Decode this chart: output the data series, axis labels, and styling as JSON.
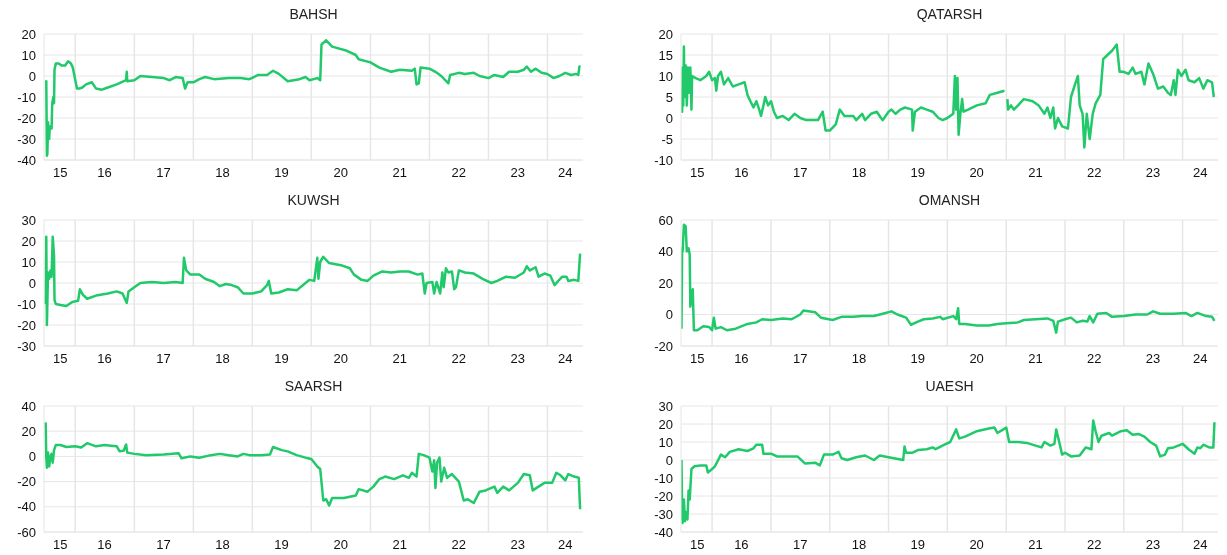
{
  "chart_data": [
    {
      "type": "line",
      "title": "BAHSH",
      "x": [
        "2015-07-06",
        "2015-07-10",
        "2015-07-13",
        "2015-07-17",
        "2015-07-24",
        "2015-07-28",
        "2015-08-08",
        "2015-08-12",
        "2015-08-19",
        "2015-08-23",
        "2015-08-26",
        "2015-09-03",
        "2015-09-21",
        "2015-10-09",
        "2015-10-31",
        "2015-11-18",
        "2015-12-06",
        "2015-12-17",
        "2016-01-12",
        "2016-01-27",
        "2016-02-14",
        "2016-03-08",
        "2016-04-13",
        "2016-05-09",
        "2016-06-14",
        "2016-07-21",
        "2016-09-14",
        "2016-11-11",
        "2016-11-15",
        "2016-11-18",
        "2017-01-01",
        "2017-02-07",
        "2017-04-20",
        "2017-07-02",
        "2017-08-08",
        "2017-09-14",
        "2017-10-27",
        "2017-11-11",
        "2017-11-26",
        "2018-01-01",
        "2018-02-07",
        "2018-03-15",
        "2018-05-09",
        "2018-08-08",
        "2018-10-20",
        "2018-12-14",
        "2019-02-07",
        "2019-04-02",
        "2019-05-09",
        "2019-06-14",
        "2019-08-08",
        "2019-10-20",
        "2019-11-26",
        "2019-12-21",
        "2020-02-07",
        "2020-02-25",
        "2020-03-04",
        "2020-04-02",
        "2020-05-09",
        "2020-08-08",
        "2020-10-02",
        "2020-10-20",
        "2021-01-01",
        "2021-02-25",
        "2021-05-09",
        "2021-07-02",
        "2021-09-14",
        "2021-10-02",
        "2021-10-13",
        "2021-10-27",
        "2021-11-07",
        "2022-01-01",
        "2022-02-07",
        "2022-03-15",
        "2022-04-28",
        "2022-05-09",
        "2022-07-02",
        "2022-08-08",
        "2022-10-02",
        "2022-11-07",
        "2023-01-01",
        "2023-02-07",
        "2023-04-02",
        "2023-05-09",
        "2023-07-02",
        "2023-08-08",
        "2023-08-26",
        "2023-09-21",
        "2023-10-20",
        "2023-11-26",
        "2024-01-01",
        "2024-02-07",
        "2024-03-15",
        "2024-04-20",
        "2024-05-27",
        "2024-06-25",
        "2024-07-10",
        "2024-07-17",
        "2024-07-24"
      ],
      "series": [
        {
          "color": "#21c96b",
          "values": [
            -2,
            -38,
            -37,
            -22,
            -30,
            -24,
            -25,
            -13,
            -10,
            -13,
            3,
            6,
            6,
            5,
            5,
            7,
            6,
            4,
            -6,
            -6,
            -5.5,
            -4,
            -3,
            -6,
            -6.5,
            -5.5,
            -4,
            -2,
            2,
            -2.5,
            -2,
            0,
            -0.5,
            -1,
            -2,
            -0.5,
            -1,
            -6,
            -3,
            -3,
            -1.5,
            -0.5,
            -1.5,
            -1,
            -1,
            -1.5,
            0.5,
            0.5,
            2.5,
            1,
            -2.5,
            -1.5,
            -0.5,
            -2,
            -1,
            -2,
            15,
            17,
            14,
            12,
            10,
            8,
            6.5,
            4,
            2,
            3,
            2.5,
            3.5,
            -4,
            -3.5,
            4,
            3.5,
            2,
            0,
            -3.5,
            0.5,
            1.5,
            1,
            1.5,
            0,
            -1,
            0.5,
            -0.5,
            2,
            2,
            3,
            4.5,
            2,
            3.5,
            1.5,
            1,
            -1,
            0,
            1.5,
            0.5,
            1,
            0.5,
            4.5,
            4.5
          ]
        }
      ],
      "xlim": [
        "2015-06-22",
        "2024-08-08"
      ],
      "xticks": [
        {
          "value": "2015-10-01",
          "label": "15"
        },
        {
          "value": "2016-01-01",
          "label": null
        },
        {
          "value": "2016-07-01",
          "label": "16"
        },
        {
          "value": "2017-01-01",
          "label": null
        },
        {
          "value": "2017-07-01",
          "label": "17"
        },
        {
          "value": "2018-01-01",
          "label": null
        },
        {
          "value": "2018-07-01",
          "label": "18"
        },
        {
          "value": "2019-01-01",
          "label": null
        },
        {
          "value": "2019-07-01",
          "label": "19"
        },
        {
          "value": "2020-01-01",
          "label": null
        },
        {
          "value": "2020-07-01",
          "label": "20"
        },
        {
          "value": "2021-01-01",
          "label": null
        },
        {
          "value": "2021-07-01",
          "label": "21"
        },
        {
          "value": "2022-01-01",
          "label": null
        },
        {
          "value": "2022-07-01",
          "label": "22"
        },
        {
          "value": "2023-01-01",
          "label": null
        },
        {
          "value": "2023-07-01",
          "label": "23"
        },
        {
          "value": "2024-01-01",
          "label": null
        },
        {
          "value": "2024-04-20",
          "label": "24"
        }
      ],
      "ylim": [
        -40,
        20
      ],
      "yticks": [
        -40,
        -30,
        -20,
        -10,
        0,
        10,
        20
      ],
      "grid": true
    },
    {
      "type": "line",
      "title": "QATARSH",
      "x": [
        "2015-06-25",
        "2015-06-29",
        "2015-07-02",
        "2015-07-06",
        "2015-07-10",
        "2015-07-13",
        "2015-07-21",
        "2015-07-28",
        "2015-08-04",
        "2015-08-12",
        "2015-08-19",
        "2015-08-26",
        "2015-08-30",
        "2015-09-21",
        "2015-10-20",
        "2015-11-26",
        "2015-12-14",
        "2016-01-01",
        "2016-01-19",
        "2016-01-27",
        "2016-02-07",
        "2016-02-25",
        "2016-03-15",
        "2016-04-10",
        "2016-05-09",
        "2016-06-14",
        "2016-07-21",
        "2016-08-08",
        "2016-08-26",
        "2016-09-14",
        "2016-10-02",
        "2016-10-20",
        "2016-10-31",
        "2016-11-15",
        "2016-11-26",
        "2016-12-14",
        "2017-01-01",
        "2017-01-19",
        "2017-02-07",
        "2017-03-15",
        "2017-04-20",
        "2017-05-27",
        "2017-07-02",
        "2017-08-08",
        "2017-10-20",
        "2017-11-18",
        "2017-12-06",
        "2018-01-01",
        "2018-02-07",
        "2018-03-04",
        "2018-04-02",
        "2018-05-27",
        "2018-06-14",
        "2018-07-21",
        "2018-08-08",
        "2018-09-14",
        "2018-10-20",
        "2018-11-15",
        "2018-11-26",
        "2019-01-01",
        "2019-01-19",
        "2019-02-14",
        "2019-03-15",
        "2019-04-13",
        "2019-05-27",
        "2019-05-31",
        "2019-06-14",
        "2019-07-21",
        "2019-08-26",
        "2019-10-02",
        "2019-11-07",
        "2019-12-03",
        "2020-01-01",
        "2020-02-07",
        "2020-02-17",
        "2020-02-25",
        "2020-03-04",
        "2020-03-11",
        "2020-03-22",
        "2020-04-02",
        "2020-04-10",
        "2020-05-09",
        "2020-07-02",
        "2020-08-26",
        "2020-09-21",
        "2020-11-07",
        "2020-12-21",
        "2021-01-01",
        "2021-01-08",
        "2021-01-12",
        "2021-01-30",
        "2021-02-17",
        "2021-03-15",
        "2021-04-20",
        "2021-06-14",
        "2021-07-21",
        "2021-08-26",
        "2021-09-14",
        "2021-10-02",
        "2021-10-20",
        "2021-10-31",
        "2021-11-18",
        "2021-12-14",
        "2022-01-19",
        "2022-02-07",
        "2022-03-04",
        "2022-03-22",
        "2022-04-02",
        "2022-04-20",
        "2022-05-01",
        "2022-05-16",
        "2022-06-03",
        "2022-06-22",
        "2022-07-10",
        "2022-08-08",
        "2022-08-26",
        "2022-09-21",
        "2022-10-20",
        "2022-11-18",
        "2022-12-06",
        "2023-01-01",
        "2023-01-30",
        "2023-02-25",
        "2023-03-15",
        "2023-04-20",
        "2023-05-09",
        "2023-06-03",
        "2023-07-02",
        "2023-08-01",
        "2023-09-03",
        "2023-10-02",
        "2023-10-20",
        "2023-11-07",
        "2023-11-18",
        "2023-12-03",
        "2023-12-25",
        "2024-01-19",
        "2024-02-07",
        "2024-03-15",
        "2024-04-13",
        "2024-05-09",
        "2024-06-03",
        "2024-07-02",
        "2024-07-13"
      ],
      "series": [
        {
          "color": "#21c96b",
          "values": [
            5,
            1.5,
            12,
            3,
            17,
            5,
            12.5,
            3,
            12,
            6,
            12,
            2,
            10,
            9.5,
            9,
            10,
            11,
            9,
            9.5,
            6.5,
            10,
            11,
            8,
            9.5,
            7.5,
            8,
            8.5,
            5.5,
            4,
            2.5,
            4,
            2,
            0.5,
            3,
            5,
            3,
            4,
            1.5,
            0,
            0.5,
            -0.5,
            1,
            0,
            -0.5,
            -0.5,
            1.5,
            -3,
            -3,
            -1.5,
            2,
            0.5,
            0.5,
            -0.5,
            1,
            -0.5,
            1,
            1.5,
            0,
            -0.5,
            1.5,
            2,
            1,
            2,
            2.5,
            2,
            -3,
            1.5,
            2.5,
            2,
            1.5,
            0,
            -0.5,
            0,
            1,
            10,
            2,
            9.5,
            -4,
            1,
            4.5,
            1.5,
            2,
            3,
            3.5,
            5.5,
            6,
            6.5,
            null,
            4.5,
            2,
            3,
            2,
            3,
            4.5,
            4,
            3,
            1,
            2.5,
            0,
            2.5,
            -2.5,
            0,
            -2,
            -2.5,
            5,
            8,
            10,
            3,
            1,
            -7,
            1,
            -5,
            1,
            3.5,
            5.5,
            14,
            15,
            16,
            17.5,
            11,
            11,
            10.5,
            12,
            10.5,
            11,
            8,
            13,
            10.5,
            7,
            7.5,
            6,
            5.5,
            9,
            5.5,
            11.5,
            10,
            11.5,
            9,
            8.5,
            9.5,
            7,
            9,
            8.5,
            5
          ]
        }
      ],
      "xlim": [
        "2015-06-22",
        "2024-08-08"
      ],
      "xticks": [
        {
          "value": "2015-10-01",
          "label": "15"
        },
        {
          "value": "2016-01-01",
          "label": null
        },
        {
          "value": "2016-07-01",
          "label": "16"
        },
        {
          "value": "2017-01-01",
          "label": null
        },
        {
          "value": "2017-07-01",
          "label": "17"
        },
        {
          "value": "2018-01-01",
          "label": null
        },
        {
          "value": "2018-07-01",
          "label": "18"
        },
        {
          "value": "2019-01-01",
          "label": null
        },
        {
          "value": "2019-07-01",
          "label": "19"
        },
        {
          "value": "2020-01-01",
          "label": null
        },
        {
          "value": "2020-07-01",
          "label": "20"
        },
        {
          "value": "2021-01-01",
          "label": null
        },
        {
          "value": "2021-07-01",
          "label": "21"
        },
        {
          "value": "2022-01-01",
          "label": null
        },
        {
          "value": "2022-07-01",
          "label": "22"
        },
        {
          "value": "2023-01-01",
          "label": null
        },
        {
          "value": "2023-07-01",
          "label": "23"
        },
        {
          "value": "2024-01-01",
          "label": null
        },
        {
          "value": "2024-04-20",
          "label": "24"
        }
      ],
      "ylim": [
        -10,
        20
      ],
      "yticks": [
        -10,
        -5,
        0,
        5,
        10,
        15,
        20
      ],
      "grid": true
    },
    {
      "type": "line",
      "title": "KUWSH",
      "x": [
        "2015-07-02",
        "2015-07-06",
        "2015-07-10",
        "2015-07-17",
        "2015-07-24",
        "2015-08-01",
        "2015-08-08",
        "2015-08-15",
        "2015-08-23",
        "2015-08-26",
        "2015-09-03",
        "2015-10-02",
        "2015-11-07",
        "2015-12-14",
        "2016-01-19",
        "2016-01-30",
        "2016-02-17",
        "2016-03-15",
        "2016-05-09",
        "2016-07-21",
        "2016-09-14",
        "2016-10-20",
        "2016-11-15",
        "2016-11-26",
        "2017-01-01",
        "2017-02-07",
        "2017-04-20",
        "2017-07-02",
        "2017-09-14",
        "2017-10-27",
        "2017-11-04",
        "2017-11-18",
        "2017-12-14",
        "2018-02-07",
        "2018-03-15",
        "2018-05-09",
        "2018-06-14",
        "2018-07-21",
        "2018-08-26",
        "2018-10-02",
        "2018-11-07",
        "2019-01-01",
        "2019-02-25",
        "2019-04-02",
        "2019-04-13",
        "2019-04-28",
        "2019-06-14",
        "2019-08-08",
        "2019-10-02",
        "2019-11-26",
        "2019-12-21",
        "2020-01-19",
        "2020-02-07",
        "2020-02-14",
        "2020-02-25",
        "2020-03-15",
        "2020-04-20",
        "2020-07-02",
        "2020-08-26",
        "2020-09-21",
        "2020-11-07",
        "2020-12-14",
        "2021-01-19",
        "2021-03-15",
        "2021-05-09",
        "2021-07-02",
        "2021-08-26",
        "2021-10-20",
        "2021-11-18",
        "2021-12-03",
        "2021-12-14",
        "2022-01-19",
        "2022-01-30",
        "2022-02-14",
        "2022-03-08",
        "2022-03-22",
        "2022-03-30",
        "2022-04-13",
        "2022-04-28",
        "2022-05-20",
        "2022-06-03",
        "2022-06-14",
        "2022-07-02",
        "2022-08-08",
        "2022-10-02",
        "2022-11-26",
        "2023-01-19",
        "2023-02-25",
        "2023-04-20",
        "2023-06-14",
        "2023-08-08",
        "2023-08-26",
        "2023-09-14",
        "2023-10-20",
        "2023-11-07",
        "2023-12-14",
        "2024-01-19",
        "2024-02-14",
        "2024-03-08",
        "2024-04-02",
        "2024-04-28",
        "2024-05-09",
        "2024-06-14",
        "2024-07-10",
        "2024-07-21"
      ],
      "series": [
        {
          "color": "#21c96b",
          "values": [
            -10,
            22,
            -20,
            5,
            2,
            6,
            3,
            22,
            13,
            -8,
            -10,
            -10.5,
            -11,
            -9,
            -8.5,
            -3,
            -5.5,
            -7.5,
            -6,
            -5,
            -4,
            -5,
            -9.5,
            -4,
            -2,
            0,
            0.5,
            0,
            0.5,
            0,
            12,
            6,
            4,
            4,
            2,
            0.5,
            -1.5,
            -0.5,
            -1,
            -2,
            -5,
            -5,
            -4,
            -1,
            1,
            -5,
            -4.5,
            -3,
            -3.5,
            0,
            1.5,
            1,
            12,
            2,
            10,
            12.5,
            9.5,
            8.5,
            7,
            4,
            1.5,
            1,
            3.5,
            5.5,
            5,
            5.5,
            5.5,
            4,
            4.5,
            -5,
            0,
            0.5,
            -5,
            0.5,
            -5,
            5,
            -2,
            7,
            5,
            5.5,
            -3,
            -2,
            6,
            5,
            4.5,
            2,
            0,
            1,
            3,
            2.5,
            5,
            8,
            6,
            7.5,
            3,
            4.5,
            3.5,
            -1,
            1,
            3,
            3,
            1,
            1.5,
            1,
            14
          ]
        }
      ],
      "xlim": [
        "2015-06-22",
        "2024-08-08"
      ],
      "xticks": [
        {
          "value": "2015-10-01",
          "label": "15"
        },
        {
          "value": "2016-01-01",
          "label": null
        },
        {
          "value": "2016-07-01",
          "label": "16"
        },
        {
          "value": "2017-01-01",
          "label": null
        },
        {
          "value": "2017-07-01",
          "label": "17"
        },
        {
          "value": "2018-01-01",
          "label": null
        },
        {
          "value": "2018-07-01",
          "label": "18"
        },
        {
          "value": "2019-01-01",
          "label": null
        },
        {
          "value": "2019-07-01",
          "label": "19"
        },
        {
          "value": "2020-01-01",
          "label": null
        },
        {
          "value": "2020-07-01",
          "label": "20"
        },
        {
          "value": "2021-01-01",
          "label": null
        },
        {
          "value": "2021-07-01",
          "label": "21"
        },
        {
          "value": "2022-01-01",
          "label": null
        },
        {
          "value": "2022-07-01",
          "label": "22"
        },
        {
          "value": "2023-01-01",
          "label": null
        },
        {
          "value": "2023-07-01",
          "label": "23"
        },
        {
          "value": "2024-01-01",
          "label": null
        },
        {
          "value": "2024-04-20",
          "label": "24"
        }
      ],
      "ylim": [
        -30,
        30
      ],
      "yticks": [
        -30,
        -20,
        -10,
        0,
        10,
        20,
        30
      ],
      "grid": true
    },
    {
      "type": "line",
      "title": "OMANSH",
      "x": [
        "2015-06-25",
        "2015-06-29",
        "2015-07-02",
        "2015-07-10",
        "2015-07-21",
        "2015-07-28",
        "2015-08-08",
        "2015-08-15",
        "2015-08-19",
        "2015-08-26",
        "2015-09-03",
        "2015-09-10",
        "2015-10-02",
        "2015-11-07",
        "2015-12-14",
        "2016-01-01",
        "2016-01-12",
        "2016-01-23",
        "2016-02-25",
        "2016-04-02",
        "2016-05-27",
        "2016-08-08",
        "2016-10-02",
        "2016-11-07",
        "2017-01-01",
        "2017-03-15",
        "2017-05-09",
        "2017-07-02",
        "2017-07-21",
        "2017-10-02",
        "2017-11-07",
        "2018-01-19",
        "2018-03-15",
        "2018-05-27",
        "2018-07-21",
        "2018-10-02",
        "2018-11-26",
        "2019-01-19",
        "2019-02-25",
        "2019-04-20",
        "2019-05-20",
        "2019-07-02",
        "2019-08-08",
        "2019-10-02",
        "2019-11-18",
        "2019-12-03",
        "2020-02-07",
        "2020-02-25",
        "2020-03-08",
        "2020-03-15",
        "2020-04-20",
        "2020-07-02",
        "2020-09-14",
        "2020-11-07",
        "2021-01-01",
        "2021-03-15",
        "2021-04-20",
        "2021-07-02",
        "2021-09-14",
        "2021-10-20",
        "2021-11-07",
        "2021-11-18",
        "2022-01-01",
        "2022-02-07",
        "2022-03-15",
        "2022-04-20",
        "2022-05-20",
        "2022-06-03",
        "2022-06-25",
        "2022-07-21",
        "2022-09-14",
        "2022-10-20",
        "2023-01-01",
        "2023-03-15",
        "2023-05-27",
        "2023-07-02",
        "2023-08-15",
        "2023-11-07",
        "2024-01-19",
        "2024-02-25",
        "2024-04-02",
        "2024-05-27",
        "2024-07-02",
        "2024-07-17"
      ],
      "series": [
        {
          "color": "#21c96b",
          "values": [
            -9,
            42,
            40,
            57,
            56,
            40,
            42,
            38,
            5,
            10,
            16,
            -10,
            -10,
            -7.5,
            -8,
            -10,
            -2,
            -9,
            -8,
            -10,
            -9,
            -6,
            -5,
            -3,
            -3.5,
            -2.5,
            -3,
            0,
            2.5,
            1.5,
            -2,
            -3.5,
            -1.5,
            -1.5,
            -1,
            -1,
            0.5,
            2,
            0,
            -2,
            -6.5,
            -4.5,
            -3,
            -2.5,
            -1.5,
            -3,
            -1,
            -3,
            4,
            -6,
            -6,
            -7,
            -7,
            -6,
            -5.5,
            -5,
            -3.5,
            -3,
            -2.5,
            -4,
            -11.5,
            -4.5,
            -3,
            -2,
            -5,
            -4,
            -4.5,
            -1,
            -5,
            0.5,
            1,
            -1.5,
            -1,
            0,
            0,
            2,
            0.5,
            0.5,
            1,
            -1,
            1,
            -1,
            -1.5,
            -4
          ]
        }
      ],
      "xlim": [
        "2015-06-22",
        "2024-08-08"
      ],
      "xticks": [
        {
          "value": "2015-10-01",
          "label": "15"
        },
        {
          "value": "2016-01-01",
          "label": null
        },
        {
          "value": "2016-07-01",
          "label": "16"
        },
        {
          "value": "2017-01-01",
          "label": null
        },
        {
          "value": "2017-07-01",
          "label": "17"
        },
        {
          "value": "2018-01-01",
          "label": null
        },
        {
          "value": "2018-07-01",
          "label": "18"
        },
        {
          "value": "2019-01-01",
          "label": null
        },
        {
          "value": "2019-07-01",
          "label": "19"
        },
        {
          "value": "2020-01-01",
          "label": null
        },
        {
          "value": "2020-07-01",
          "label": "20"
        },
        {
          "value": "2021-01-01",
          "label": null
        },
        {
          "value": "2021-07-01",
          "label": "21"
        },
        {
          "value": "2022-01-01",
          "label": null
        },
        {
          "value": "2022-07-01",
          "label": "22"
        },
        {
          "value": "2023-01-01",
          "label": null
        },
        {
          "value": "2023-07-01",
          "label": "23"
        },
        {
          "value": "2024-01-01",
          "label": null
        },
        {
          "value": "2024-04-20",
          "label": "24"
        }
      ],
      "ylim": [
        -20,
        60
      ],
      "yticks": [
        -20,
        0,
        20,
        40,
        60
      ],
      "grid": true
    },
    {
      "type": "line",
      "title": "SAARSH",
      "x": [
        "2015-07-02",
        "2015-07-06",
        "2015-07-10",
        "2015-07-17",
        "2015-07-24",
        "2015-08-01",
        "2015-08-08",
        "2015-08-15",
        "2015-08-23",
        "2015-09-03",
        "2015-10-02",
        "2015-11-07",
        "2016-01-01",
        "2016-02-07",
        "2016-03-15",
        "2016-05-09",
        "2016-07-02",
        "2016-08-08",
        "2016-09-14",
        "2016-10-02",
        "2016-10-27",
        "2016-11-11",
        "2016-11-18",
        "2017-01-01",
        "2017-03-15",
        "2017-07-02",
        "2017-10-02",
        "2017-10-20",
        "2017-12-14",
        "2018-02-07",
        "2018-04-20",
        "2018-06-14",
        "2018-08-08",
        "2018-10-02",
        "2018-11-07",
        "2018-12-14",
        "2019-02-25",
        "2019-04-20",
        "2019-05-09",
        "2019-07-02",
        "2019-08-08",
        "2019-10-02",
        "2019-11-26",
        "2020-01-01",
        "2020-02-07",
        "2020-02-25",
        "2020-03-15",
        "2020-04-02",
        "2020-04-20",
        "2020-05-09",
        "2020-07-21",
        "2020-10-02",
        "2020-10-20",
        "2020-12-14",
        "2021-01-19",
        "2021-02-25",
        "2021-04-02",
        "2021-05-27",
        "2021-07-21",
        "2021-08-26",
        "2021-09-14",
        "2021-10-13",
        "2021-10-27",
        "2021-11-26",
        "2022-01-01",
        "2022-01-19",
        "2022-01-30",
        "2022-02-07",
        "2022-02-17",
        "2022-03-04",
        "2022-03-15",
        "2022-04-02",
        "2022-04-20",
        "2022-05-20",
        "2022-07-02",
        "2022-08-01",
        "2022-08-26",
        "2022-10-02",
        "2022-11-07",
        "2022-12-14",
        "2023-02-07",
        "2023-02-25",
        "2023-04-02",
        "2023-05-09",
        "2023-07-02",
        "2023-08-08",
        "2023-09-14",
        "2023-10-02",
        "2023-11-07",
        "2023-12-14",
        "2024-01-30",
        "2024-02-25",
        "2024-03-22",
        "2024-04-20",
        "2024-05-09",
        "2024-06-14",
        "2024-07-13",
        "2024-07-21"
      ],
      "series": [
        {
          "color": "#21c96b",
          "values": [
            27,
            0,
            -9,
            3,
            -8,
            0,
            2,
            -5,
            5,
            9,
            9,
            7.5,
            8,
            7,
            10.5,
            8,
            9,
            8.5,
            8,
            4,
            4.5,
            9.5,
            3,
            2,
            1,
            1.5,
            2.5,
            -1.5,
            0,
            -1,
            1,
            2,
            1,
            0,
            2,
            1,
            1,
            1.5,
            7.5,
            5,
            4,
            1,
            -1,
            -2,
            -8,
            -10,
            -35,
            -34,
            -39,
            -33,
            -33,
            -31,
            -26,
            -28,
            -24,
            -18,
            -16,
            -18,
            -15,
            -17,
            -13,
            -16,
            2,
            1,
            -1,
            -12,
            -3,
            -25,
            -5,
            -1,
            -20,
            -9,
            -17,
            -14,
            -20,
            -35,
            -34,
            -37,
            -28,
            -27,
            -24,
            -29,
            -24,
            -27,
            -21,
            -14,
            -15,
            -27,
            -24,
            -21,
            -21,
            -13,
            -15,
            -19,
            -14,
            -16,
            -17,
            -42
          ]
        }
      ],
      "xlim": [
        "2015-06-22",
        "2024-08-08"
      ],
      "xticks": [
        {
          "value": "2015-10-01",
          "label": "15"
        },
        {
          "value": "2016-01-01",
          "label": null
        },
        {
          "value": "2016-07-01",
          "label": "16"
        },
        {
          "value": "2017-01-01",
          "label": null
        },
        {
          "value": "2017-07-01",
          "label": "17"
        },
        {
          "value": "2018-01-01",
          "label": null
        },
        {
          "value": "2018-07-01",
          "label": "18"
        },
        {
          "value": "2019-01-01",
          "label": null
        },
        {
          "value": "2019-07-01",
          "label": "19"
        },
        {
          "value": "2020-01-01",
          "label": null
        },
        {
          "value": "2020-07-01",
          "label": "20"
        },
        {
          "value": "2021-01-01",
          "label": null
        },
        {
          "value": "2021-07-01",
          "label": "21"
        },
        {
          "value": "2022-01-01",
          "label": null
        },
        {
          "value": "2022-07-01",
          "label": "22"
        },
        {
          "value": "2023-01-01",
          "label": null
        },
        {
          "value": "2023-07-01",
          "label": "23"
        },
        {
          "value": "2024-01-01",
          "label": null
        },
        {
          "value": "2024-04-20",
          "label": "24"
        }
      ],
      "ylim": [
        -60,
        40
      ],
      "yticks": [
        -60,
        -40,
        -20,
        0,
        20,
        40
      ],
      "grid": true
    },
    {
      "type": "line",
      "title": "UAESH",
      "x": [
        "2015-06-25",
        "2015-06-29",
        "2015-07-02",
        "2015-07-10",
        "2015-07-17",
        "2015-07-24",
        "2015-08-01",
        "2015-08-08",
        "2015-08-15",
        "2015-08-26",
        "2015-09-14",
        "2015-10-20",
        "2015-11-26",
        "2015-12-06",
        "2016-01-01",
        "2016-01-19",
        "2016-02-25",
        "2016-03-22",
        "2016-04-20",
        "2016-06-14",
        "2016-08-08",
        "2016-09-14",
        "2016-10-02",
        "2016-11-07",
        "2016-11-15",
        "2017-01-01",
        "2017-02-07",
        "2017-04-20",
        "2017-06-14",
        "2017-08-01",
        "2017-10-02",
        "2017-10-31",
        "2017-11-26",
        "2018-01-19",
        "2018-02-25",
        "2018-03-15",
        "2018-04-20",
        "2018-06-14",
        "2018-08-08",
        "2018-10-02",
        "2018-11-07",
        "2019-01-01",
        "2019-04-02",
        "2019-04-10",
        "2019-04-20",
        "2019-05-27",
        "2019-07-02",
        "2019-08-26",
        "2019-10-02",
        "2019-10-20",
        "2019-12-14",
        "2020-01-19",
        "2020-02-25",
        "2020-03-15",
        "2020-04-20",
        "2020-07-02",
        "2020-09-14",
        "2020-10-20",
        "2020-11-07",
        "2020-12-14",
        "2021-01-01",
        "2021-01-19",
        "2021-03-15",
        "2021-05-09",
        "2021-07-02",
        "2021-08-08",
        "2021-08-26",
        "2021-10-02",
        "2021-10-27",
        "2021-11-07",
        "2021-11-26",
        "2021-12-14",
        "2022-01-01",
        "2022-02-07",
        "2022-04-02",
        "2022-05-09",
        "2022-06-14",
        "2022-06-25",
        "2022-07-10",
        "2022-07-28",
        "2022-08-15",
        "2022-10-02",
        "2022-10-20",
        "2022-12-14",
        "2023-01-19",
        "2023-02-25",
        "2023-04-02",
        "2023-05-09",
        "2023-06-14",
        "2023-07-21",
        "2023-08-15",
        "2023-09-14",
        "2023-10-02",
        "2023-11-07",
        "2024-01-01",
        "2024-02-07",
        "2024-03-15",
        "2024-04-02",
        "2024-04-20",
        "2024-05-09",
        "2024-06-14",
        "2024-07-10",
        "2024-07-17"
      ],
      "series": [
        {
          "color": "#21c96b",
          "values": [
            0,
            -31,
            -35,
            -22,
            -34,
            -29,
            -33,
            -17,
            -22,
            -5,
            -3.5,
            -3,
            -3,
            -7,
            -5,
            -3.5,
            3,
            1.5,
            4.5,
            6,
            5,
            6.5,
            8.5,
            8.5,
            3.5,
            3.5,
            2,
            2,
            2,
            -2,
            -1.5,
            -3,
            3,
            3,
            4.5,
            1,
            0,
            1.5,
            2.5,
            0,
            2.5,
            1.5,
            0,
            7.5,
            4,
            4,
            5.5,
            6,
            7,
            6,
            8.5,
            10,
            17,
            12,
            13,
            16,
            17.5,
            18,
            15,
            17,
            18,
            10,
            10,
            9.5,
            8,
            7,
            10,
            8,
            9,
            17,
            10,
            3,
            4,
            2,
            2.5,
            7,
            6,
            22,
            16,
            10,
            13.5,
            15,
            13.5,
            16,
            16.5,
            14,
            14.5,
            13,
            10,
            8,
            2,
            3,
            6.5,
            7,
            9,
            6,
            3.5,
            7,
            6.5,
            8.5,
            7,
            7,
            21
          ]
        }
      ],
      "xlim": [
        "2015-06-22",
        "2024-08-08"
      ],
      "xticks": [
        {
          "value": "2015-10-01",
          "label": "15"
        },
        {
          "value": "2016-01-01",
          "label": null
        },
        {
          "value": "2016-07-01",
          "label": "16"
        },
        {
          "value": "2017-01-01",
          "label": null
        },
        {
          "value": "2017-07-01",
          "label": "17"
        },
        {
          "value": "2018-01-01",
          "label": null
        },
        {
          "value": "2018-07-01",
          "label": "18"
        },
        {
          "value": "2019-01-01",
          "label": null
        },
        {
          "value": "2019-07-01",
          "label": "19"
        },
        {
          "value": "2020-01-01",
          "label": null
        },
        {
          "value": "2020-07-01",
          "label": "20"
        },
        {
          "value": "2021-01-01",
          "label": null
        },
        {
          "value": "2021-07-01",
          "label": "21"
        },
        {
          "value": "2022-01-01",
          "label": null
        },
        {
          "value": "2022-07-01",
          "label": "22"
        },
        {
          "value": "2023-01-01",
          "label": null
        },
        {
          "value": "2023-07-01",
          "label": "23"
        },
        {
          "value": "2024-01-01",
          "label": null
        },
        {
          "value": "2024-04-20",
          "label": "24"
        }
      ],
      "ylim": [
        -40,
        30
      ],
      "yticks": [
        -40,
        -30,
        -20,
        -10,
        0,
        10,
        20,
        30
      ],
      "grid": true
    }
  ]
}
